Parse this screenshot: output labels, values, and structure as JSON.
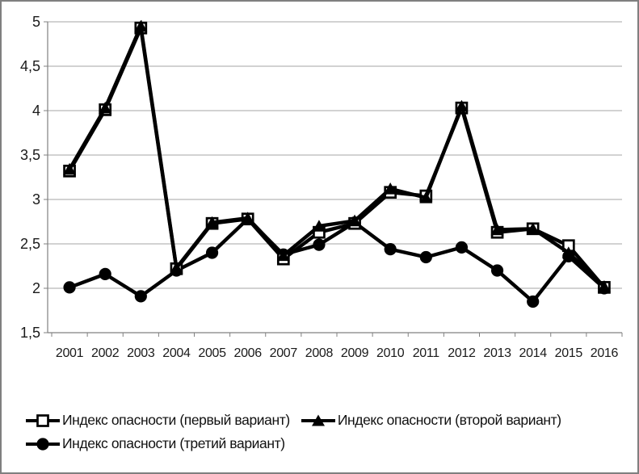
{
  "chart_data": {
    "type": "line",
    "title": "",
    "xlabel": "",
    "ylabel": "",
    "categories": [
      "2001",
      "2002",
      "2003",
      "2004",
      "2005",
      "2006",
      "2007",
      "2008",
      "2009",
      "2010",
      "2011",
      "2012",
      "2013",
      "2014",
      "2015",
      "2016"
    ],
    "ylim": [
      1.5,
      5
    ],
    "ytick_step": 0.5,
    "yticks": [
      {
        "value": 5,
        "label": "5"
      },
      {
        "value": 4.5,
        "label": "4,5"
      },
      {
        "value": 4,
        "label": "4"
      },
      {
        "value": 3.5,
        "label": "3,5"
      },
      {
        "value": 3,
        "label": "3"
      },
      {
        "value": 2.5,
        "label": "2,5"
      },
      {
        "value": 2,
        "label": "2"
      },
      {
        "value": 1.5,
        "label": "1,5"
      }
    ],
    "grid": true,
    "legend_position": "bottom-left",
    "colors": {
      "series": "#000000",
      "grid": "#a6a6a6",
      "axis": "#808080",
      "text": "#1a1a1a",
      "frame_border": "#7f7f7f",
      "background": "#ffffff"
    },
    "series": [
      {
        "name": "Индекс опасности (первый вариант)",
        "marker": "open-square",
        "values": [
          3.32,
          4.01,
          4.93,
          2.22,
          2.73,
          2.78,
          2.33,
          2.63,
          2.73,
          3.08,
          3.04,
          4.03,
          2.63,
          2.67,
          2.48,
          2.01
        ]
      },
      {
        "name": "Индекс опасности (второй вариант)",
        "marker": "filled-triangle",
        "values": [
          3.34,
          4.03,
          4.95,
          2.23,
          2.74,
          2.79,
          2.37,
          2.7,
          2.76,
          3.12,
          3.02,
          4.05,
          2.66,
          2.67,
          2.4,
          2.02
        ]
      },
      {
        "name": "Индекс опасности (третий вариант)",
        "marker": "filled-circle",
        "values": [
          2.01,
          2.16,
          1.91,
          2.2,
          2.4,
          2.78,
          2.38,
          2.49,
          2.74,
          2.44,
          2.35,
          2.46,
          2.2,
          1.85,
          2.36,
          2.0
        ]
      }
    ]
  }
}
